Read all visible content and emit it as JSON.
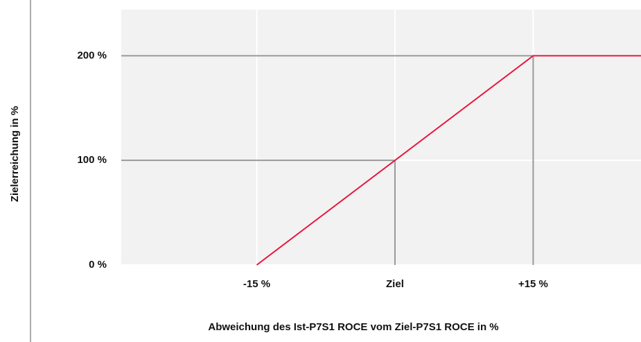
{
  "chart_data": {
    "type": "line",
    "x_label": "Abweichung des Ist-P7S1 ROCE vom Ziel-P7S1 ROCE in %",
    "y_label": "Zielerreichung in %",
    "x": [
      -15,
      0,
      15,
      26.7
    ],
    "series": [
      {
        "color": "#e8173f",
        "values": [
          0,
          100,
          200,
          200
        ]
      }
    ],
    "xlim": [
      -29.7,
      26.7
    ],
    "ylim": [
      0,
      244
    ],
    "xticks": [
      {
        "value": -15,
        "label": "-15 %"
      },
      {
        "value": 0,
        "label": "Ziel"
      },
      {
        "value": 15,
        "label": "+15 %"
      }
    ],
    "yticks": [
      {
        "value": 0,
        "label": "0 %"
      },
      {
        "value": 100,
        "label": "100 %"
      },
      {
        "value": 200,
        "label": "200 %"
      }
    ],
    "grid": true
  }
}
